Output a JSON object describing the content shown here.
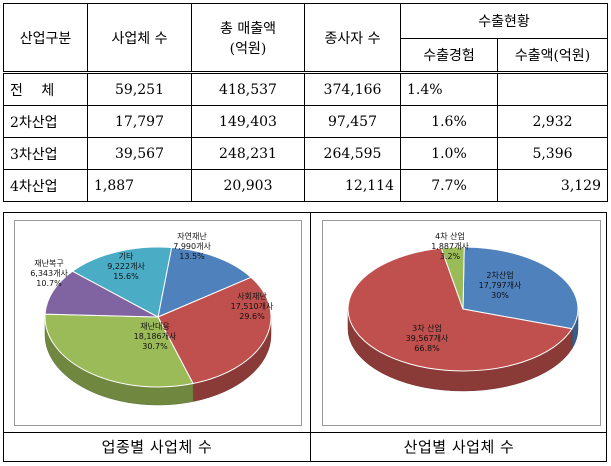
{
  "table": {
    "headers": {
      "category": "산업구분",
      "companies": "사업체 수",
      "sales_line1": "총 매출액",
      "sales_line2": "(억원)",
      "employees": "종사자 수",
      "export": "수출현황",
      "export_experience": "수출경험",
      "export_amount": "수출액(억원)"
    },
    "rows": [
      {
        "category": "전　 체",
        "companies": "59,251",
        "sales": "418,537",
        "employees": "374,166",
        "export_experience": "1.4%",
        "export_amount": ""
      },
      {
        "category": "2차산업",
        "companies": "17,797",
        "sales": "149,403",
        "employees": "97,457",
        "export_experience": "1.6%",
        "export_amount": "2,932"
      },
      {
        "category": "3차산업",
        "companies": "39,567",
        "sales": "248,231",
        "employees": "264,595",
        "export_experience": "1.0%",
        "export_amount": "5,396"
      },
      {
        "category": "4차산업",
        "companies": "1,887",
        "sales": "20,903",
        "employees": "12,114",
        "export_experience": "7.7%",
        "export_amount": "3,129"
      }
    ]
  },
  "captions": {
    "left": "업종별 사업체 수",
    "right": "산업별 사업체 수"
  },
  "chart_data": [
    {
      "type": "pie",
      "title": "",
      "slices": [
        {
          "name": "자연재난",
          "count": "7,990개사",
          "percent": "13.5%",
          "value": 13.5,
          "color": "#4f81bd"
        },
        {
          "name": "사회재난",
          "count": "17,510개사",
          "percent": "29.6%",
          "value": 29.6,
          "color": "#c0504d"
        },
        {
          "name": "재난대응",
          "count": "18,186개사",
          "percent": "30.7%",
          "value": 30.7,
          "color": "#9bbb59"
        },
        {
          "name": "재난복구",
          "count": "6,343개사",
          "percent": "10.7%",
          "value": 10.7,
          "color": "#8064a2"
        },
        {
          "name": "기타",
          "count": "9,222개사",
          "percent": "15.6%",
          "value": 15.6,
          "color": "#4bacc6"
        }
      ]
    },
    {
      "type": "pie",
      "title": "",
      "slices": [
        {
          "name": "2차산업",
          "count": "17,797개사",
          "percent": "30%",
          "value": 30.0,
          "color": "#4f81bd"
        },
        {
          "name": "3차 산업",
          "count": "39,567개사",
          "percent": "66.8%",
          "value": 66.8,
          "color": "#c0504d"
        },
        {
          "name": "4차 산업",
          "count": "1,887개사",
          "percent": "3.2%",
          "value": 3.2,
          "color": "#9bbb59"
        }
      ]
    }
  ]
}
